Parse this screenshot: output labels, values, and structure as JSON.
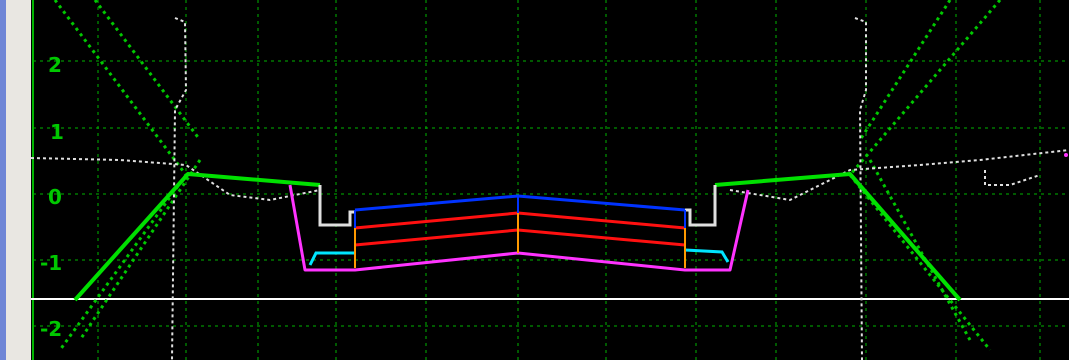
{
  "viewer": {
    "grid_color": "#00b400",
    "background": "#000000",
    "y_axis_labels": [
      "2",
      "1",
      "0",
      "-1",
      "-2"
    ]
  },
  "icons": {
    "section-canvas": "cross-section-view"
  },
  "colors": {
    "side_slope": "#00e000",
    "ditch": "#ff33ff",
    "curb": "#e0e0e0",
    "pavement_top": "#0033ff",
    "pavement_layers": "#ff1010",
    "base": "#ff40ff",
    "gutter": "#00e5ff",
    "center_marker": "#ff9900",
    "existing_ground": "#e0e0e0",
    "datum_line": "#ffffff"
  }
}
